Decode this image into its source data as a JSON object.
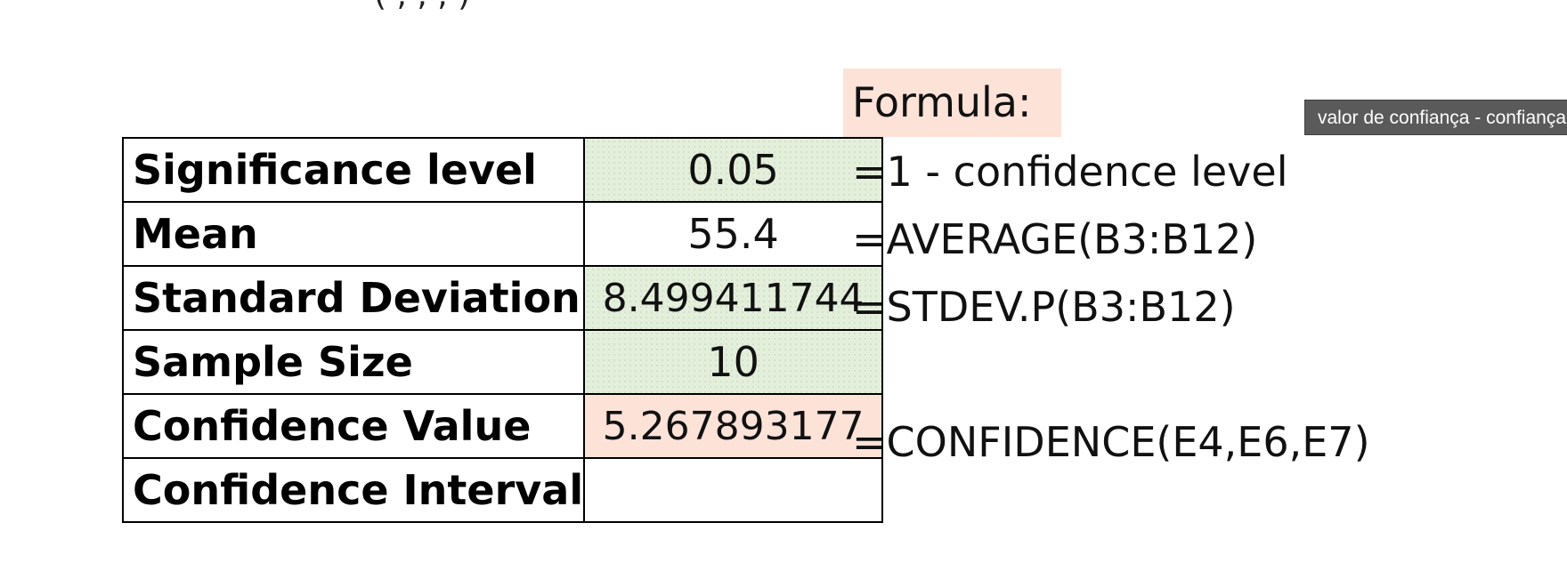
{
  "top_text": "(                                 ,   ,      ,   )",
  "formula_header": "Formula:",
  "rows": [
    {
      "label": "Significance level",
      "value": "0.05",
      "formula": "=1 - confidence level"
    },
    {
      "label": "Mean",
      "value": "55.4",
      "formula": "=AVERAGE(B3:B12)"
    },
    {
      "label": "Standard Deviation",
      "value": "8.499411744",
      "formula": "=STDEV.P(B3:B12)"
    },
    {
      "label": "Sample Size",
      "value": "10",
      "formula": ""
    },
    {
      "label": "Confidence Value",
      "value": "5.267893177",
      "formula": "=CONFIDENCE(E4,E6,E7)"
    },
    {
      "label": "Confidence Interval",
      "value": "",
      "formula": ""
    }
  ],
  "tooltip": "valor de confiança - confiança",
  "colors": {
    "input_fill": "#e3efdb",
    "output_fill": "#fde2d8",
    "tooltip_bg": "#5a5a5a"
  }
}
